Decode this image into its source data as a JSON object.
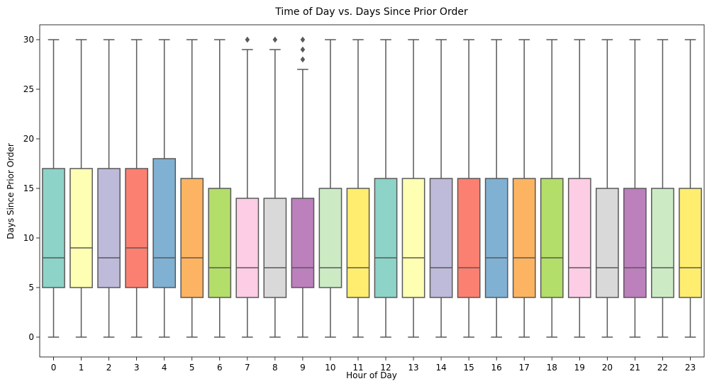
{
  "chart_data": {
    "type": "box",
    "title": "Time of Day vs. Days Since Prior Order",
    "xlabel": "Hour of Day",
    "ylabel": "Days Since Prior Order",
    "ylim": [
      -2,
      31.5
    ],
    "yticks": [
      0,
      5,
      10,
      15,
      20,
      25,
      30
    ],
    "grid": false,
    "box_stroke_color": "#595959",
    "categories": [
      "0",
      "1",
      "2",
      "3",
      "4",
      "5",
      "6",
      "7",
      "8",
      "9",
      "10",
      "11",
      "12",
      "13",
      "14",
      "15",
      "16",
      "17",
      "18",
      "19",
      "20",
      "21",
      "22",
      "23"
    ],
    "boxes": [
      {
        "min": 0,
        "q1": 5,
        "median": 8,
        "q3": 17,
        "max": 30,
        "color": "#8dd3c7",
        "outliers": []
      },
      {
        "min": 0,
        "q1": 5,
        "median": 9,
        "q3": 17,
        "max": 30,
        "color": "#ffffb3",
        "outliers": []
      },
      {
        "min": 0,
        "q1": 5,
        "median": 8,
        "q3": 17,
        "max": 30,
        "color": "#bebada",
        "outliers": []
      },
      {
        "min": 0,
        "q1": 5,
        "median": 9,
        "q3": 17,
        "max": 30,
        "color": "#fb8072",
        "outliers": []
      },
      {
        "min": 0,
        "q1": 5,
        "median": 8,
        "q3": 18,
        "max": 30,
        "color": "#80b1d3",
        "outliers": []
      },
      {
        "min": 0,
        "q1": 4,
        "median": 8,
        "q3": 16,
        "max": 30,
        "color": "#fdb462",
        "outliers": []
      },
      {
        "min": 0,
        "q1": 4,
        "median": 7,
        "q3": 15,
        "max": 30,
        "color": "#b3de69",
        "outliers": []
      },
      {
        "min": 0,
        "q1": 4,
        "median": 7,
        "q3": 14,
        "max": 29,
        "color": "#fccde5",
        "outliers": [
          30
        ]
      },
      {
        "min": 0,
        "q1": 4,
        "median": 7,
        "q3": 14,
        "max": 29,
        "color": "#d9d9d9",
        "outliers": [
          30
        ]
      },
      {
        "min": 0,
        "q1": 5,
        "median": 7,
        "q3": 14,
        "max": 27,
        "color": "#bc80bd",
        "outliers": [
          28,
          29,
          30
        ]
      },
      {
        "min": 0,
        "q1": 5,
        "median": 7,
        "q3": 15,
        "max": 30,
        "color": "#ccebc5",
        "outliers": []
      },
      {
        "min": 0,
        "q1": 4,
        "median": 7,
        "q3": 15,
        "max": 30,
        "color": "#ffed6f",
        "outliers": []
      },
      {
        "min": 0,
        "q1": 4,
        "median": 8,
        "q3": 16,
        "max": 30,
        "color": "#8dd3c7",
        "outliers": []
      },
      {
        "min": 0,
        "q1": 4,
        "median": 8,
        "q3": 16,
        "max": 30,
        "color": "#ffffb3",
        "outliers": []
      },
      {
        "min": 0,
        "q1": 4,
        "median": 7,
        "q3": 16,
        "max": 30,
        "color": "#bebada",
        "outliers": []
      },
      {
        "min": 0,
        "q1": 4,
        "median": 7,
        "q3": 16,
        "max": 30,
        "color": "#fb8072",
        "outliers": []
      },
      {
        "min": 0,
        "q1": 4,
        "median": 8,
        "q3": 16,
        "max": 30,
        "color": "#80b1d3",
        "outliers": []
      },
      {
        "min": 0,
        "q1": 4,
        "median": 8,
        "q3": 16,
        "max": 30,
        "color": "#fdb462",
        "outliers": []
      },
      {
        "min": 0,
        "q1": 4,
        "median": 8,
        "q3": 16,
        "max": 30,
        "color": "#b3de69",
        "outliers": []
      },
      {
        "min": 0,
        "q1": 4,
        "median": 7,
        "q3": 16,
        "max": 30,
        "color": "#fccde5",
        "outliers": []
      },
      {
        "min": 0,
        "q1": 4,
        "median": 7,
        "q3": 15,
        "max": 30,
        "color": "#d9d9d9",
        "outliers": []
      },
      {
        "min": 0,
        "q1": 4,
        "median": 7,
        "q3": 15,
        "max": 30,
        "color": "#bc80bd",
        "outliers": []
      },
      {
        "min": 0,
        "q1": 4,
        "median": 7,
        "q3": 15,
        "max": 30,
        "color": "#ccebc5",
        "outliers": []
      },
      {
        "min": 0,
        "q1": 4,
        "median": 7,
        "q3": 15,
        "max": 30,
        "color": "#ffed6f",
        "outliers": []
      }
    ]
  }
}
